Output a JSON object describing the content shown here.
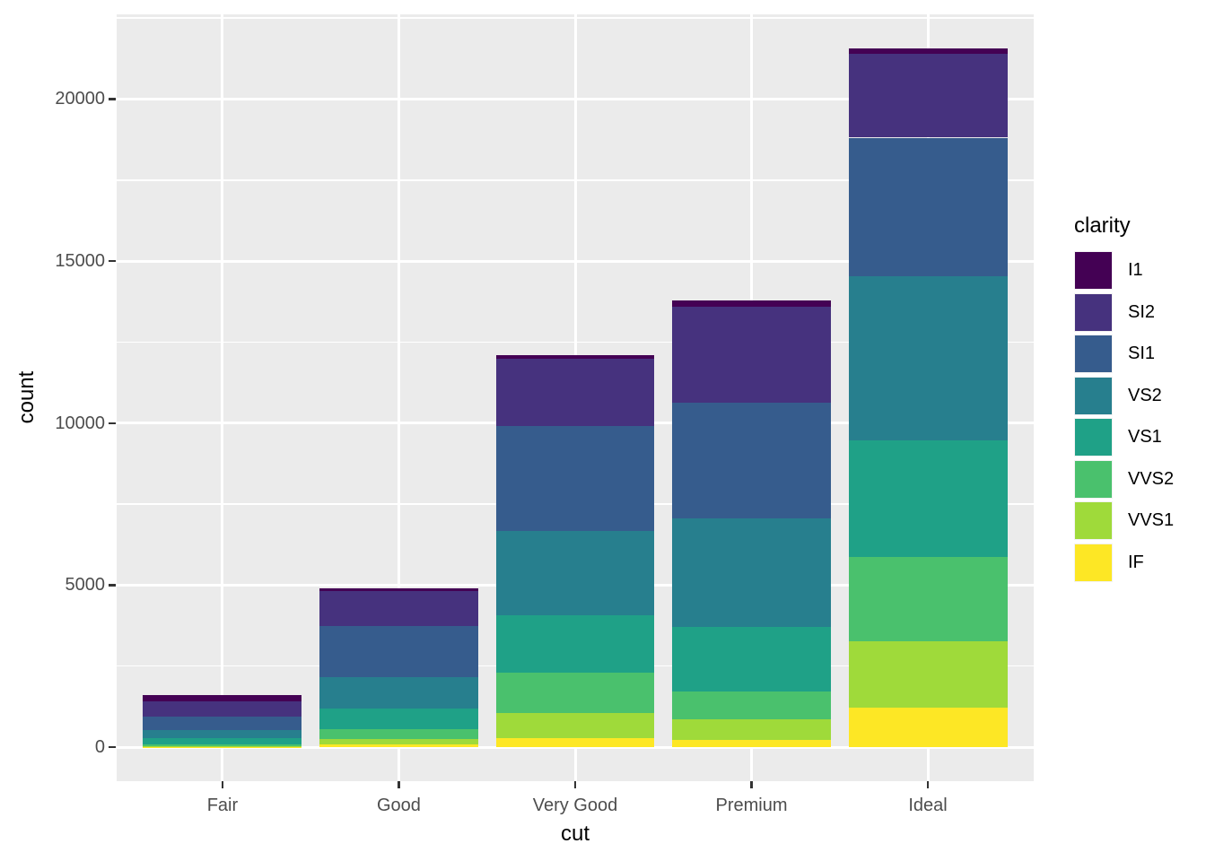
{
  "chart_data": {
    "type": "bar",
    "stacked": true,
    "title": "",
    "xlabel": "cut",
    "ylabel": "count",
    "legend_title": "clarity",
    "legend_position": "right",
    "grid": true,
    "panel_background": "#EBEBEB",
    "gridline_color": "#FFFFFF",
    "tick_label_color": "#4D4D4D",
    "axis_title_color": "#000000",
    "categories": [
      "Fair",
      "Good",
      "Very Good",
      "Premium",
      "Ideal"
    ],
    "series": [
      {
        "name": "I1",
        "color": "#440154",
        "values": [
          210,
          96,
          84,
          205,
          146
        ]
      },
      {
        "name": "SI2",
        "color": "#46327E",
        "values": [
          466,
          1081,
          2100,
          2949,
          2598
        ]
      },
      {
        "name": "SI1",
        "color": "#365C8D",
        "values": [
          408,
          1560,
          3240,
          3575,
          4282
        ]
      },
      {
        "name": "VS2",
        "color": "#277F8E",
        "values": [
          261,
          978,
          2591,
          3357,
          5071
        ]
      },
      {
        "name": "VS1",
        "color": "#1FA187",
        "values": [
          170,
          648,
          1775,
          1989,
          3589
        ]
      },
      {
        "name": "VVS2",
        "color": "#4AC16D",
        "values": [
          69,
          286,
          1235,
          870,
          2606
        ]
      },
      {
        "name": "VVS1",
        "color": "#9FDA3A",
        "values": [
          17,
          186,
          789,
          616,
          2047
        ]
      },
      {
        "name": "IF",
        "color": "#FDE725",
        "values": [
          9,
          71,
          268,
          230,
          1212
        ]
      }
    ],
    "stack_order": "first series at top of bar, last series at bottom",
    "totals": [
      1610,
      4906,
      12082,
      13791,
      21551
    ],
    "y_ticks": [
      0,
      5000,
      10000,
      15000,
      20000
    ],
    "y_tick_labels": [
      "0",
      "5000",
      "10000",
      "15000",
      "20000"
    ],
    "y_minor_ticks": [
      2500,
      7500,
      12500,
      17500,
      22500
    ],
    "ylim": [
      -1078,
      22629
    ]
  }
}
